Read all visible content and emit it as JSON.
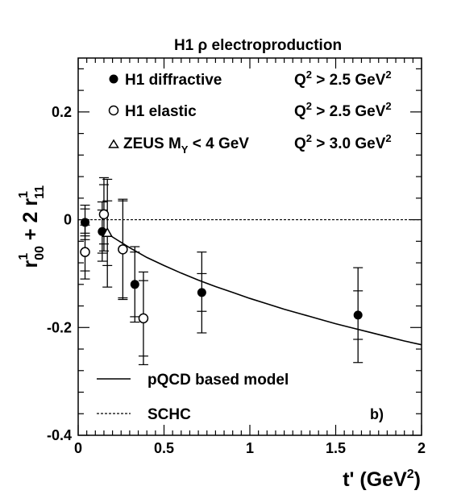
{
  "chart_data": {
    "type": "scatter",
    "title": "H1 ρ electroproduction",
    "panel_label": "b)",
    "xlabel": "t' (GeV²)",
    "xlabel_parts": {
      "main": "t' (GeV",
      "sup": "2",
      "end": ")"
    },
    "ylabel": "r¹₀₀ + 2 r¹₁₁",
    "ylabel_parts": {
      "a": "r",
      "a_sup": "1",
      "a_sub": "00",
      "mid": " + 2 ",
      "b": "r",
      "b_sup": "1",
      "b_sub": "11"
    },
    "xlim": [
      0,
      2
    ],
    "ylim": [
      -0.4,
      0.3
    ],
    "xticks": [
      {
        "value": 0,
        "label": "0"
      },
      {
        "value": 0.5,
        "label": "0.5"
      },
      {
        "value": 1,
        "label": "1"
      },
      {
        "value": 1.5,
        "label": "1.5"
      },
      {
        "value": 2,
        "label": "2"
      }
    ],
    "yticks": [
      {
        "value": -0.4,
        "label": "-0.4"
      },
      {
        "value": -0.2,
        "label": "-0.2"
      },
      {
        "value": 0,
        "label": "0"
      },
      {
        "value": 0.2,
        "label": "0.2"
      }
    ],
    "series": [
      {
        "name": "H1 diffractive",
        "cut": "Q² > 2.5 GeV²",
        "marker": "filled-circle",
        "points": [
          {
            "x": 0.04,
            "y": -0.005,
            "stat": 0.025,
            "tot": 0.032
          },
          {
            "x": 0.14,
            "y": -0.022,
            "stat": 0.04,
            "tot": 0.055
          },
          {
            "x": 0.33,
            "y": -0.12,
            "stat": 0.06,
            "tot": 0.07
          },
          {
            "x": 0.72,
            "y": -0.135,
            "stat": 0.035,
            "tot": 0.075
          },
          {
            "x": 1.63,
            "y": -0.177,
            "stat": 0.045,
            "tot": 0.088
          }
        ]
      },
      {
        "name": "H1 elastic",
        "cut": "Q² > 2.5 GeV²",
        "marker": "open-circle",
        "points": [
          {
            "x": 0.04,
            "y": -0.06,
            "stat": 0.035,
            "tot": 0.05
          },
          {
            "x": 0.15,
            "y": 0.01,
            "stat": 0.055,
            "tot": 0.068
          },
          {
            "x": 0.26,
            "y": -0.055,
            "stat": 0.09,
            "tot": 0.093
          },
          {
            "x": 0.38,
            "y": -0.183,
            "stat": 0.07,
            "tot": 0.086
          }
        ]
      },
      {
        "name": "ZEUS M_Y < 4 GeV",
        "cut": "Q² > 3.0 GeV²",
        "marker": "open-triangle",
        "points": [
          {
            "x": 0.17,
            "y": -0.025,
            "stat": 0.06,
            "tot": 0.1
          }
        ]
      },
      {
        "name": "pQCD based model",
        "marker": "solid-line",
        "curve": [
          [
            0.15,
            -0.02
          ],
          [
            0.2,
            -0.032
          ],
          [
            0.3,
            -0.052
          ],
          [
            0.4,
            -0.07
          ],
          [
            0.5,
            -0.085
          ],
          [
            0.6,
            -0.099
          ],
          [
            0.7,
            -0.112
          ],
          [
            0.8,
            -0.124
          ],
          [
            0.9,
            -0.135
          ],
          [
            1.0,
            -0.146
          ],
          [
            1.1,
            -0.156
          ],
          [
            1.2,
            -0.166
          ],
          [
            1.3,
            -0.175
          ],
          [
            1.4,
            -0.184
          ],
          [
            1.5,
            -0.193
          ],
          [
            1.6,
            -0.201
          ],
          [
            1.7,
            -0.209
          ],
          [
            1.8,
            -0.217
          ],
          [
            1.9,
            -0.225
          ],
          [
            2.0,
            -0.232
          ]
        ]
      },
      {
        "name": "SCHC",
        "marker": "dashed-line",
        "curve": [
          [
            0,
            0
          ],
          [
            2,
            0
          ]
        ]
      }
    ],
    "legend": {
      "top": [
        {
          "label": "H1 diffractive",
          "cut_lhs": "Q",
          "cut_rhs": " > 2.5 GeV"
        },
        {
          "label": "H1 elastic",
          "cut_lhs": "Q",
          "cut_rhs": " > 2.5 GeV"
        },
        {
          "label_main": "ZEUS M",
          "label_sub": "Y",
          "label_end": " < 4 GeV",
          "cut_lhs": "Q",
          "cut_rhs": " > 3.0 GeV"
        }
      ],
      "bottom": [
        {
          "label": "pQCD based model"
        },
        {
          "label": "SCHC"
        }
      ],
      "placement": "top and bottom-left inside plot"
    }
  }
}
